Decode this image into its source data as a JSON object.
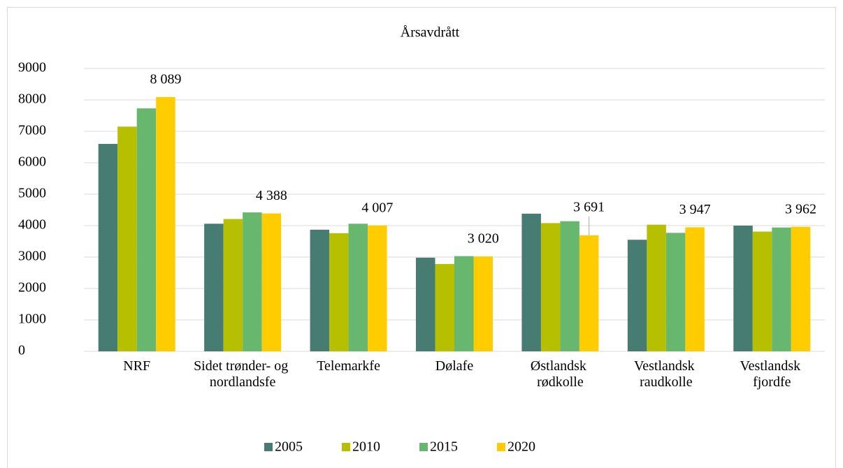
{
  "chart_data": {
    "type": "bar",
    "title": "Årsavdrått",
    "categories": [
      "NRF",
      "Sidet trønder- og nordlandsfe",
      "Telemarkfe",
      "Dølafe",
      "Østlandsk rødkolle",
      "Vestlandsk raudkolle",
      "Vestlandsk fjordfe"
    ],
    "series": [
      {
        "name": "2005",
        "color": "#467c72",
        "values": [
          6600,
          4060,
          3870,
          2980,
          4380,
          3550,
          4000
        ]
      },
      {
        "name": "2010",
        "color": "#b6bf00",
        "values": [
          7150,
          4210,
          3760,
          2780,
          4080,
          4030,
          3810
        ]
      },
      {
        "name": "2015",
        "color": "#68b76f",
        "values": [
          7730,
          4420,
          4060,
          3030,
          4140,
          3770,
          3940
        ]
      },
      {
        "name": "2020",
        "color": "#ffcc00",
        "values": [
          8089,
          4388,
          4007,
          3020,
          3691,
          3947,
          3962
        ],
        "value_labels": [
          "8 089",
          "4 388",
          "4 007",
          "3 020",
          "3 691",
          "3 947",
          "3 962"
        ]
      }
    ],
    "ylim": [
      0,
      9000
    ],
    "yticks": [
      0,
      1000,
      2000,
      3000,
      4000,
      5000,
      6000,
      7000,
      8000,
      9000
    ],
    "grid": true,
    "legend": "bottom"
  }
}
